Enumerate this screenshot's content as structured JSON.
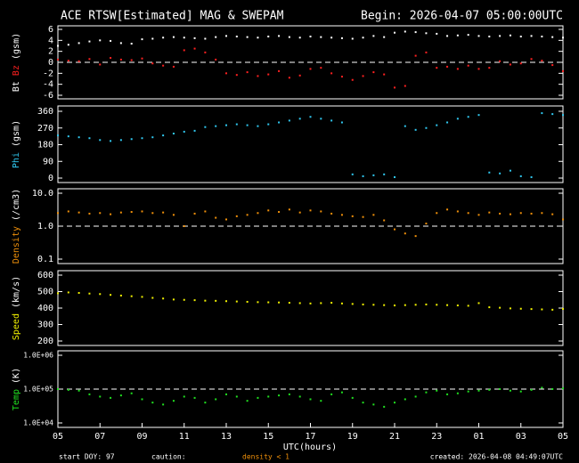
{
  "title": "ACE RTSW[Estimated] MAG & SWEPAM",
  "subtitle": "Begin: 2026-04-07 05:00:00UTC",
  "xlabel": "UTC(hours)",
  "footer": {
    "start": "start DOY:  97",
    "caution": "caution:",
    "caution_note": "density < 1",
    "created": "created: 2026-04-08 04:49:07UTC"
  },
  "chart_data": [
    {
      "type": "scatter",
      "ylabel": "(gsm)",
      "ylim": [
        -6,
        6
      ],
      "yticks": [
        6,
        4,
        2,
        0,
        -2,
        -4,
        -6
      ],
      "refline": 0,
      "x": [
        0,
        0.5,
        1,
        1.5,
        2,
        2.5,
        3,
        3.5,
        4,
        4.5,
        5,
        5.5,
        6,
        6.5,
        7,
        7.5,
        8,
        8.5,
        9,
        9.5,
        10,
        10.5,
        11,
        11.5,
        12,
        12.5,
        13,
        13.5,
        14,
        14.5,
        15,
        15.5,
        16,
        16.5,
        17,
        17.5,
        18,
        18.5,
        19,
        19.5,
        20,
        20.5,
        21,
        21.5,
        22,
        22.5,
        23,
        23.5,
        24
      ],
      "series": [
        {
          "name": "Bt",
          "color": "#ffffff",
          "values": [
            3.0,
            3.2,
            3.5,
            3.8,
            4.0,
            3.9,
            3.5,
            3.4,
            4.2,
            4.3,
            4.5,
            4.6,
            4.5,
            4.4,
            4.3,
            4.6,
            4.8,
            4.7,
            4.6,
            4.5,
            4.7,
            4.8,
            4.6,
            4.5,
            4.7,
            4.6,
            4.5,
            4.4,
            4.3,
            4.5,
            4.8,
            4.6,
            5.4,
            5.6,
            5.5,
            5.3,
            5.2,
            4.8,
            4.9,
            5.0,
            4.8,
            4.7,
            4.8,
            4.9,
            4.7,
            4.8,
            4.7,
            4.6,
            4.5
          ]
        },
        {
          "name": "Bz",
          "color": "#ff2020",
          "values": [
            0.5,
            0.3,
            0.2,
            0.6,
            -0.4,
            0.8,
            0.5,
            0.4,
            0.7,
            -0.2,
            -0.6,
            -0.8,
            2.2,
            2.5,
            1.8,
            0.5,
            -2.0,
            -2.3,
            -1.8,
            -2.5,
            -2.2,
            -1.6,
            -2.8,
            -2.4,
            -1.2,
            -1.0,
            -2.0,
            -2.6,
            -3.2,
            -2.5,
            -1.8,
            -2.2,
            -4.6,
            -4.3,
            1.2,
            1.8,
            -1.0,
            -0.8,
            -1.2,
            -0.6,
            -1.2,
            -1.0,
            0.2,
            -0.4,
            -0.2,
            0.6,
            0.3,
            -0.5,
            -1.6
          ]
        }
      ]
    },
    {
      "type": "scatter",
      "ylabel": "(gsm)",
      "ylim": [
        0,
        360
      ],
      "yticks": [
        0,
        90,
        180,
        270,
        360
      ],
      "x": [
        0,
        0.5,
        1,
        1.5,
        2,
        2.5,
        3,
        3.5,
        4,
        4.5,
        5,
        5.5,
        6,
        6.5,
        7,
        7.5,
        8,
        8.5,
        9,
        9.5,
        10,
        10.5,
        11,
        11.5,
        12,
        12.5,
        13,
        13.5,
        14,
        14.5,
        15,
        15.5,
        16,
        16.5,
        17,
        17.5,
        18,
        18.5,
        19,
        19.5,
        20,
        20.5,
        21,
        21.5,
        22,
        22.5,
        23,
        23.5,
        24
      ],
      "series": [
        {
          "name": "Phi",
          "color": "#30c8f0",
          "values": [
            230,
            225,
            220,
            215,
            205,
            200,
            205,
            210,
            215,
            220,
            230,
            240,
            250,
            255,
            275,
            280,
            285,
            290,
            285,
            280,
            290,
            300,
            310,
            320,
            330,
            320,
            310,
            300,
            20,
            10,
            15,
            20,
            5,
            280,
            260,
            270,
            285,
            300,
            320,
            330,
            340,
            30,
            25,
            40,
            10,
            5,
            350,
            345,
            340
          ]
        }
      ]
    },
    {
      "type": "scatter",
      "ylabel": "(/cm3)",
      "log": true,
      "ylim": [
        0.1,
        10
      ],
      "yticks": [
        {
          "value": 10,
          "label": "10.0"
        },
        {
          "value": 1,
          "label": "1.0"
        },
        0.1
      ],
      "refline": 1,
      "x": [
        0,
        0.5,
        1,
        1.5,
        2,
        2.5,
        3,
        3.5,
        4,
        4.5,
        5,
        5.5,
        6,
        6.5,
        7,
        7.5,
        8,
        8.5,
        9,
        9.5,
        10,
        10.5,
        11,
        11.5,
        12,
        12.5,
        13,
        13.5,
        14,
        14.5,
        15,
        15.5,
        16,
        16.5,
        17,
        17.5,
        18,
        18.5,
        19,
        19.5,
        20,
        20.5,
        21,
        21.5,
        22,
        22.5,
        23,
        23.5,
        24
      ],
      "series": [
        {
          "name": "Density",
          "color": "#f0900a",
          "values": [
            2.5,
            2.8,
            2.6,
            2.4,
            2.5,
            2.3,
            2.6,
            2.7,
            2.8,
            2.5,
            2.6,
            2.2,
            1.0,
            2.4,
            2.8,
            1.8,
            1.6,
            2.0,
            2.2,
            2.5,
            3.0,
            2.7,
            3.2,
            2.6,
            3.0,
            2.8,
            2.4,
            2.2,
            2.0,
            1.9,
            2.2,
            1.5,
            0.8,
            0.6,
            0.5,
            1.2,
            2.5,
            3.2,
            2.8,
            2.5,
            2.2,
            2.6,
            2.4,
            2.3,
            2.5,
            2.4,
            2.5,
            2.3,
            1.6
          ]
        }
      ]
    },
    {
      "type": "scatter",
      "ylabel": "(km/s)",
      "ylim": [
        200,
        600
      ],
      "yticks": [
        200,
        300,
        400,
        500,
        600
      ],
      "x": [
        0,
        0.5,
        1,
        1.5,
        2,
        2.5,
        3,
        3.5,
        4,
        4.5,
        5,
        5.5,
        6,
        6.5,
        7,
        7.5,
        8,
        8.5,
        9,
        9.5,
        10,
        10.5,
        11,
        11.5,
        12,
        12.5,
        13,
        13.5,
        14,
        14.5,
        15,
        15.5,
        16,
        16.5,
        17,
        17.5,
        18,
        18.5,
        19,
        19.5,
        20,
        20.5,
        21,
        21.5,
        22,
        22.5,
        23,
        23.5,
        24
      ],
      "series": [
        {
          "name": "Speed",
          "color": "#f0f000",
          "values": [
            490,
            495,
            492,
            488,
            485,
            480,
            476,
            472,
            468,
            462,
            458,
            452,
            450,
            448,
            445,
            444,
            442,
            440,
            438,
            436,
            435,
            434,
            432,
            430,
            428,
            430,
            432,
            428,
            425,
            422,
            420,
            418,
            416,
            418,
            420,
            422,
            420,
            418,
            416,
            414,
            430,
            405,
            402,
            398,
            396,
            394,
            392,
            390,
            395
          ]
        }
      ]
    },
    {
      "type": "scatter",
      "ylabel": "(K)",
      "log": true,
      "ylim": [
        10000,
        1000000
      ],
      "yticks": [
        {
          "value": 1000000,
          "label": "1.0E+06"
        },
        {
          "value": 100000,
          "label": "1.0E+05"
        },
        {
          "value": 10000,
          "label": "1.0E+04"
        }
      ],
      "refline": 100000,
      "xlim": [
        0,
        24
      ],
      "xticks": [
        {
          "value": 0,
          "label": "05"
        },
        {
          "value": 2,
          "label": "07"
        },
        {
          "value": 4,
          "label": "09"
        },
        {
          "value": 6,
          "label": "11"
        },
        {
          "value": 8,
          "label": "13"
        },
        {
          "value": 10,
          "label": "15"
        },
        {
          "value": 12,
          "label": "17"
        },
        {
          "value": 14,
          "label": "19"
        },
        {
          "value": 16,
          "label": "21"
        },
        {
          "value": 18,
          "label": "23"
        },
        {
          "value": 20,
          "label": "01"
        },
        {
          "value": 22,
          "label": "03"
        },
        {
          "value": 24,
          "label": "05"
        }
      ],
      "x": [
        0,
        0.5,
        1,
        1.5,
        2,
        2.5,
        3,
        3.5,
        4,
        4.5,
        5,
        5.5,
        6,
        6.5,
        7,
        7.5,
        8,
        8.5,
        9,
        9.5,
        10,
        10.5,
        11,
        11.5,
        12,
        12.5,
        13,
        13.5,
        14,
        14.5,
        15,
        15.5,
        16,
        16.5,
        17,
        17.5,
        18,
        18.5,
        19,
        19.5,
        20,
        20.5,
        21,
        21.5,
        22,
        22.5,
        23,
        23.5,
        24
      ],
      "series": [
        {
          "name": "Temp",
          "color": "#20e020",
          "values": [
            100000,
            95000,
            90000,
            70000,
            60000,
            55000,
            65000,
            75000,
            50000,
            40000,
            35000,
            45000,
            60000,
            55000,
            40000,
            50000,
            70000,
            60000,
            45000,
            55000,
            60000,
            65000,
            70000,
            60000,
            50000,
            45000,
            70000,
            80000,
            55000,
            40000,
            35000,
            30000,
            40000,
            50000,
            60000,
            80000,
            90000,
            70000,
            75000,
            85000,
            90000,
            95000,
            100000,
            90000,
            85000,
            95000,
            110000,
            100000,
            105000
          ]
        }
      ]
    }
  ]
}
